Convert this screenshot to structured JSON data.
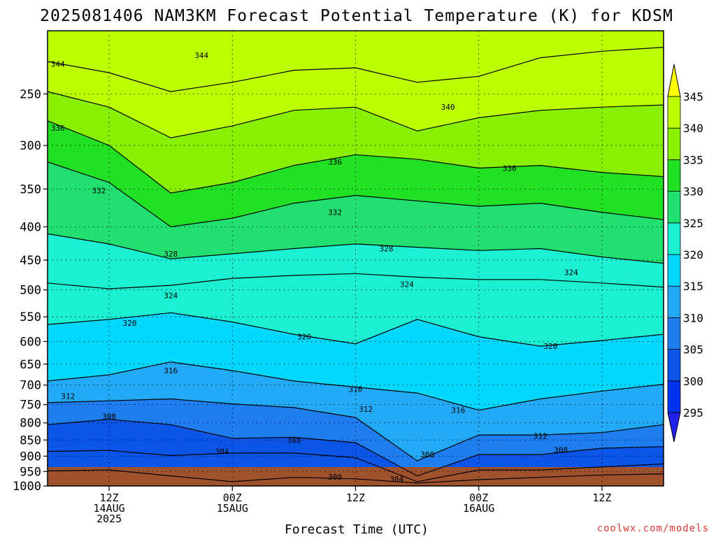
{
  "chart_data": {
    "type": "heatmap",
    "title": "2025081406 NAM3KM Forecast Potential Temperature (K) for KDSM",
    "xlabel": "Forecast Time (UTC)",
    "ylabel": "",
    "credit": "coolwx.com/models",
    "x_ticks": [
      {
        "l1": "12Z",
        "l2": "14AUG",
        "l3": "2025",
        "hours": 6
      },
      {
        "l1": "00Z",
        "l2": "15AUG",
        "l3": "",
        "hours": 18
      },
      {
        "l1": "12Z",
        "l2": "",
        "l3": "",
        "hours": 30
      },
      {
        "l1": "00Z",
        "l2": "16AUG",
        "l3": "",
        "hours": 42
      },
      {
        "l1": "12Z",
        "l2": "",
        "l3": "",
        "hours": 54
      }
    ],
    "x_range_hours": [
      0,
      60
    ],
    "y_axis": "pressure (hPa), log scale, inverted",
    "y_range": [
      1000,
      200
    ],
    "y_ticks": [
      250,
      300,
      350,
      400,
      450,
      500,
      550,
      600,
      650,
      700,
      750,
      800,
      850,
      900,
      950,
      1000
    ],
    "colorbar": {
      "levels": [
        295,
        300,
        305,
        310,
        315,
        320,
        325,
        330,
        335,
        340,
        345
      ],
      "colors": [
        "#2222ee",
        "#0033ee",
        "#0b55e8",
        "#1e7ef0",
        "#22aaf6",
        "#00d8ff",
        "#1cf0d2",
        "#22e070",
        "#22e024",
        "#88f000",
        "#bbff00",
        "#ffff00"
      ]
    },
    "series": [
      {
        "level": 344,
        "hours": [
          0,
          6,
          12,
          18,
          24,
          30,
          36,
          42,
          48,
          54,
          60
        ],
        "pressure": [
          223,
          232,
          248,
          240,
          230,
          228,
          240,
          235,
          220,
          215,
          212
        ]
      },
      {
        "level": 340,
        "hours": [
          0,
          6,
          12,
          18,
          24,
          30,
          36,
          42,
          48,
          54,
          60
        ],
        "pressure": [
          248,
          262,
          292,
          280,
          265,
          262,
          285,
          272,
          265,
          262,
          260
        ]
      },
      {
        "level": 336,
        "hours": [
          0,
          6,
          12,
          18,
          24,
          30,
          36,
          42,
          48,
          54,
          60
        ],
        "pressure": [
          275,
          300,
          355,
          342,
          322,
          310,
          315,
          325,
          322,
          330,
          335
        ]
      },
      {
        "level": 332,
        "hours": [
          0,
          6,
          12,
          18,
          24,
          30,
          36,
          42,
          48,
          54,
          60
        ],
        "pressure": [
          318,
          342,
          400,
          388,
          368,
          358,
          365,
          372,
          368,
          380,
          390
        ]
      },
      {
        "level": 328,
        "hours": [
          0,
          6,
          12,
          18,
          24,
          30,
          36,
          42,
          48,
          54,
          60
        ],
        "pressure": [
          410,
          425,
          448,
          440,
          432,
          425,
          430,
          435,
          432,
          445,
          455
        ]
      },
      {
        "level": 324,
        "hours": [
          0,
          6,
          12,
          18,
          24,
          30,
          36,
          42,
          48,
          54,
          60
        ],
        "pressure": [
          488,
          498,
          492,
          480,
          475,
          472,
          478,
          482,
          482,
          488,
          495
        ]
      },
      {
        "level": 320,
        "hours": [
          0,
          6,
          12,
          18,
          24,
          30,
          36,
          42,
          48,
          54,
          60
        ],
        "pressure": [
          565,
          555,
          542,
          560,
          585,
          605,
          555,
          590,
          610,
          598,
          585
        ]
      },
      {
        "level": 316,
        "hours": [
          0,
          6,
          12,
          18,
          24,
          30,
          36,
          42,
          48,
          54,
          60
        ],
        "pressure": [
          690,
          675,
          645,
          665,
          690,
          705,
          720,
          765,
          735,
          715,
          698
        ]
      },
      {
        "level": 312,
        "hours": [
          0,
          6,
          12,
          18,
          24,
          30,
          36,
          42,
          48,
          54,
          60
        ],
        "pressure": [
          745,
          740,
          735,
          748,
          758,
          785,
          915,
          835,
          835,
          828,
          805
        ]
      },
      {
        "level": 308,
        "hours": [
          0,
          6,
          12,
          18,
          24,
          30,
          36,
          42,
          48,
          54,
          60
        ],
        "pressure": [
          805,
          790,
          805,
          845,
          842,
          858,
          965,
          895,
          895,
          875,
          870
        ]
      },
      {
        "level": 304,
        "hours": [
          0,
          6,
          12,
          18,
          24,
          30,
          36,
          42,
          48,
          54,
          60
        ],
        "pressure": [
          885,
          882,
          898,
          890,
          890,
          905,
          985,
          945,
          945,
          935,
          925
        ]
      },
      {
        "level": 300,
        "hours": [
          0,
          6,
          12,
          18,
          24,
          30,
          36,
          42,
          48,
          54,
          60
        ],
        "pressure": [
          948,
          945,
          965,
          985,
          970,
          975,
          990,
          978,
          970,
          962,
          958
        ]
      }
    ],
    "contour_labels": [
      {
        "text": "344",
        "hours": 1,
        "p": 225
      },
      {
        "text": "344",
        "hours": 15,
        "p": 218
      },
      {
        "text": "340",
        "hours": 39,
        "p": 262
      },
      {
        "text": "336",
        "hours": 1,
        "p": 282
      },
      {
        "text": "336",
        "hours": 28,
        "p": 318
      },
      {
        "text": "336",
        "hours": 45,
        "p": 325
      },
      {
        "text": "332",
        "hours": 5,
        "p": 352
      },
      {
        "text": "332",
        "hours": 28,
        "p": 380
      },
      {
        "text": "328",
        "hours": 12,
        "p": 440
      },
      {
        "text": "328",
        "hours": 33,
        "p": 432
      },
      {
        "text": "324",
        "hours": 12,
        "p": 510
      },
      {
        "text": "324",
        "hours": 35,
        "p": 490
      },
      {
        "text": "324",
        "hours": 51,
        "p": 470
      },
      {
        "text": "320",
        "hours": 8,
        "p": 562
      },
      {
        "text": "320",
        "hours": 25,
        "p": 590
      },
      {
        "text": "320",
        "hours": 49,
        "p": 610
      },
      {
        "text": "316",
        "hours": 12,
        "p": 665
      },
      {
        "text": "316",
        "hours": 30,
        "p": 710
      },
      {
        "text": "316",
        "hours": 40,
        "p": 765
      },
      {
        "text": "312",
        "hours": 2,
        "p": 728
      },
      {
        "text": "312",
        "hours": 31,
        "p": 762
      },
      {
        "text": "312",
        "hours": 48,
        "p": 838
      },
      {
        "text": "308",
        "hours": 6,
        "p": 782
      },
      {
        "text": "308",
        "hours": 24,
        "p": 850
      },
      {
        "text": "308",
        "hours": 37,
        "p": 895
      },
      {
        "text": "308",
        "hours": 50,
        "p": 880
      },
      {
        "text": "304",
        "hours": 17,
        "p": 885
      },
      {
        "text": "304",
        "hours": 34,
        "p": 975
      },
      {
        "text": "300",
        "hours": 28,
        "p": 968
      }
    ],
    "grid": "dotted",
    "legend": "colorbar right"
  }
}
